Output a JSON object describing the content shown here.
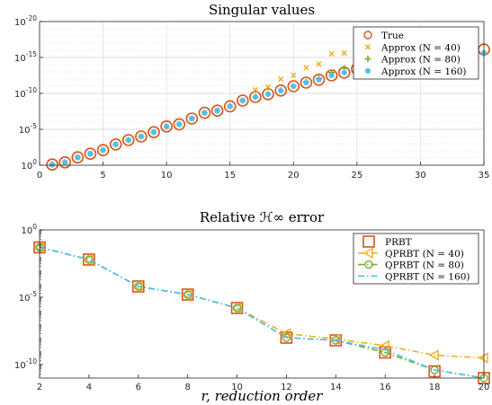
{
  "chart_data": [
    {
      "type": "scatter",
      "title": "Singular values",
      "xlabel": "",
      "ylabel": "",
      "yscale": "log",
      "xlim": [
        0,
        35
      ],
      "ylim_exp": [
        -20,
        0
      ],
      "xticks": [
        0,
        5,
        10,
        15,
        20,
        25,
        30,
        35
      ],
      "yticks": [
        {
          "exp": 0,
          "label": "10",
          "sup": "0"
        },
        {
          "exp": -5,
          "label": "10",
          "sup": "-5"
        },
        {
          "exp": -10,
          "label": "10",
          "sup": "-10"
        },
        {
          "exp": -15,
          "label": "10",
          "sup": "-15"
        },
        {
          "exp": -20,
          "label": "10",
          "sup": "-20"
        }
      ],
      "grid": true,
      "legend_position": "top-right",
      "series": [
        {
          "name": "True",
          "marker": "circle",
          "color": "#D95319",
          "x": [
            1,
            2,
            3,
            4,
            5,
            6,
            7,
            8,
            9,
            10,
            11,
            12,
            13,
            14,
            15,
            16,
            17,
            18,
            19,
            20,
            21,
            22,
            23,
            24,
            25,
            26,
            27,
            28,
            29,
            30,
            31,
            32,
            33,
            34,
            35
          ],
          "log10_y": [
            -0.1,
            -0.4,
            -1.1,
            -1.6,
            -2.1,
            -2.9,
            -3.5,
            -4.0,
            -4.6,
            -5.4,
            -5.7,
            -6.5,
            -7.3,
            -7.6,
            -8.2,
            -9.0,
            -9.5,
            -9.9,
            -10.4,
            -11.0,
            -11.5,
            -11.9,
            -12.5,
            -12.9,
            -13.4,
            -14.0,
            -14.4,
            -14.9,
            -15.2,
            -15.5,
            -15.8,
            -16.0,
            -16.0,
            -16.1,
            -16.1
          ]
        },
        {
          "name": "Approx (N = 40)",
          "marker": "x",
          "color": "#EDB120",
          "x": [
            1,
            2,
            3,
            4,
            5,
            6,
            7,
            8,
            9,
            10,
            11,
            12,
            13,
            14,
            15,
            16,
            17,
            18,
            19,
            20,
            21,
            22,
            23,
            24,
            25,
            26,
            27,
            28,
            29,
            30,
            31,
            32,
            33,
            34,
            35
          ],
          "log10_y": [
            -0.1,
            -0.4,
            -1.1,
            -1.6,
            -2.1,
            -2.9,
            -3.5,
            -4.0,
            -4.6,
            -5.4,
            -5.7,
            -6.5,
            -7.3,
            -7.6,
            -8.2,
            -9.0,
            -10.5,
            -10.9,
            -12.0,
            -12.5,
            -13.6,
            -14.1,
            -15.5,
            -15.6,
            -15.7,
            -15.3,
            -15.8,
            -15.3,
            -15.5,
            -15.8,
            -15.4,
            -15.7,
            -15.5,
            -15.4,
            -15.6
          ]
        },
        {
          "name": "Approx (N = 80)",
          "marker": "plus",
          "color": "#77AC30",
          "x": [
            1,
            2,
            3,
            4,
            5,
            6,
            7,
            8,
            9,
            10,
            11,
            12,
            13,
            14,
            15,
            16,
            17,
            18,
            19,
            20,
            21,
            22,
            23,
            24,
            25,
            26,
            27,
            28,
            29,
            30,
            31,
            32,
            33,
            34,
            35
          ],
          "log10_y": [
            -0.1,
            -0.4,
            -1.1,
            -1.6,
            -2.1,
            -2.9,
            -3.5,
            -4.0,
            -4.6,
            -5.4,
            -5.7,
            -6.5,
            -7.3,
            -7.6,
            -8.2,
            -9.0,
            -9.5,
            -9.9,
            -10.4,
            -11.0,
            -11.6,
            -12.1,
            -12.9,
            -13.5,
            -14.1,
            -14.8,
            -14.9,
            -15.1,
            -15.4,
            -15.5,
            -15.7,
            -15.6,
            -15.8,
            -15.7,
            -15.6
          ]
        },
        {
          "name": "Approx (N = 160)",
          "marker": "asterisk",
          "color": "#4DBEEE",
          "x": [
            1,
            2,
            3,
            4,
            5,
            6,
            7,
            8,
            9,
            10,
            11,
            12,
            13,
            14,
            15,
            16,
            17,
            18,
            19,
            20,
            21,
            22,
            23,
            24,
            25,
            26,
            27,
            28,
            29,
            30,
            31,
            32,
            33,
            34,
            35
          ],
          "log10_y": [
            -0.1,
            -0.4,
            -1.1,
            -1.6,
            -2.1,
            -2.9,
            -3.5,
            -4.0,
            -4.6,
            -5.4,
            -5.7,
            -6.5,
            -7.3,
            -7.6,
            -8.2,
            -9.0,
            -9.5,
            -9.9,
            -10.4,
            -11.0,
            -11.5,
            -11.9,
            -12.5,
            -12.9,
            -13.4,
            -14.0,
            -14.4,
            -14.9,
            -15.2,
            -15.5,
            -15.6,
            -15.5,
            -15.6,
            -15.5,
            -15.6
          ]
        }
      ]
    },
    {
      "type": "line",
      "title": "Relative ℋ∞ error",
      "xlabel": "r, reduction order",
      "ylabel": "",
      "yscale": "log",
      "xlim": [
        2,
        20
      ],
      "ylim_exp": [
        -11,
        0
      ],
      "xticks": [
        2,
        4,
        6,
        8,
        10,
        12,
        14,
        16,
        18,
        20
      ],
      "yticks": [
        {
          "exp": 0,
          "label": "10",
          "sup": "0"
        },
        {
          "exp": -5,
          "label": "10",
          "sup": "-5"
        },
        {
          "exp": -10,
          "label": "10",
          "sup": "-10"
        }
      ],
      "grid": false,
      "legend_position": "top-right",
      "series": [
        {
          "name": "PRBT",
          "marker": "square",
          "color": "#D95319",
          "line": "none",
          "x": [
            2,
            4,
            6,
            8,
            10,
            12,
            14,
            16,
            18,
            20
          ],
          "log10_y": [
            -1.3,
            -2.2,
            -4.2,
            -4.8,
            -5.8,
            -8.0,
            -8.2,
            -9.1,
            -10.5,
            -11.0
          ]
        },
        {
          "name": "QPRBT (N = 40)",
          "marker": "triangle-left",
          "color": "#EDB120",
          "line": "dash-dot",
          "x": [
            2,
            4,
            6,
            8,
            10,
            12,
            14,
            16,
            18,
            20
          ],
          "log10_y": [
            -1.3,
            -2.2,
            -4.2,
            -4.8,
            -5.8,
            -7.7,
            -8.1,
            -8.6,
            -9.3,
            -9.5
          ]
        },
        {
          "name": "QPRBT (N = 80)",
          "marker": "circle",
          "color": "#77AC30",
          "line": "dash-dot",
          "x": [
            2,
            4,
            6,
            8,
            10,
            12,
            14,
            16,
            18,
            20
          ],
          "log10_y": [
            -1.3,
            -2.2,
            -4.2,
            -4.8,
            -5.8,
            -8.0,
            -8.2,
            -9.1,
            -10.4,
            -11.0
          ]
        },
        {
          "name": "QPRBT (N = 160)",
          "marker": "none",
          "color": "#4DBEEE",
          "line": "dash-dot",
          "x": [
            2,
            4,
            6,
            8,
            10,
            12,
            14,
            16,
            18,
            20
          ],
          "log10_y": [
            -1.3,
            -2.2,
            -4.2,
            -4.8,
            -5.8,
            -8.0,
            -8.2,
            -8.9,
            -10.4,
            -11.0
          ]
        }
      ]
    }
  ]
}
